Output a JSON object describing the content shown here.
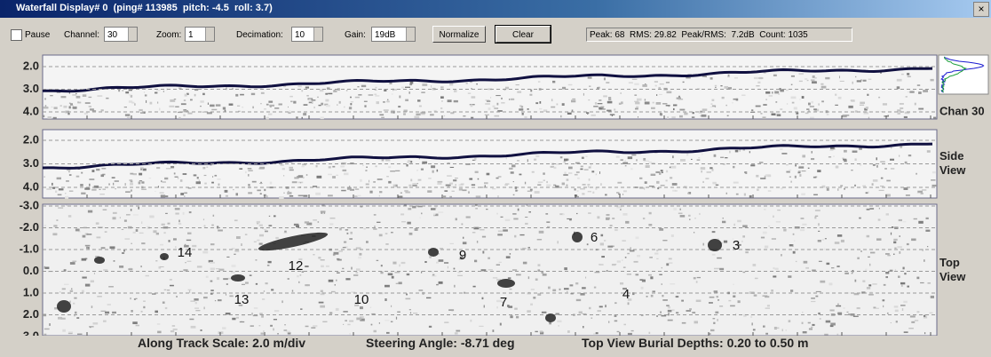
{
  "window": {
    "title": "Waterfall Display# 0  (ping# 113985  pitch: -4.5  roll: 3.7)",
    "close": "×"
  },
  "toolbar": {
    "pause": "Pause",
    "channel_label": "Channel:",
    "channel": "30",
    "zoom_label": "Zoom:",
    "zoom": "1",
    "decimation_label": "Decimation:",
    "decimation": "10",
    "gain_label": "Gain:",
    "gain": "19dB",
    "normalize": "Normalize",
    "clear": "Clear",
    "status": "Peak: 68  RMS: 29.82  Peak/RMS:  7.2dB  Count: 1035"
  },
  "panels": [
    {
      "ticks": [
        "2.0",
        "3.0",
        "4.0"
      ],
      "label": "Chan 30"
    },
    {
      "ticks": [
        "2.0",
        "3.0",
        "4.0"
      ],
      "label": "Side View"
    },
    {
      "ticks": [
        "-3.0",
        "-2.0",
        "-1.0",
        "0.0",
        "1.0",
        "2.0",
        "3.0"
      ],
      "label": "Top View",
      "targets": [
        "14",
        "12",
        "13",
        "10",
        "9",
        "7",
        "6",
        "4",
        "3"
      ]
    }
  ],
  "footer": {
    "scale": "Along Track Scale: 2.0 m/div",
    "steering": "Steering Angle: -8.71 deg",
    "burial": "Top View Burial Depths: 0.20 to 0.50 m"
  }
}
